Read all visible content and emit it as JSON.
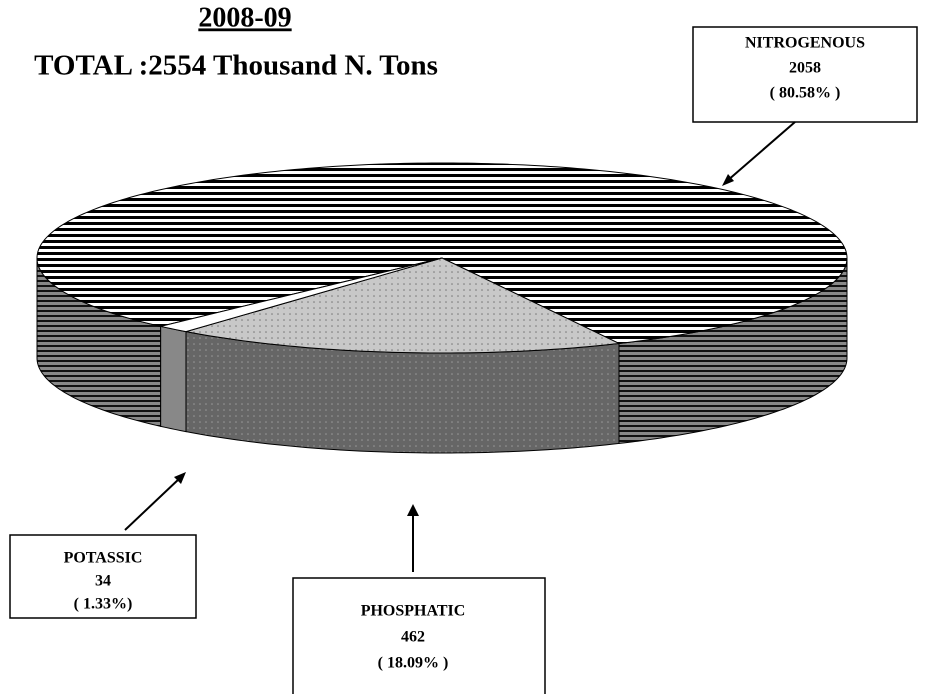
{
  "chart_data": {
    "type": "pie",
    "title": "2008-09",
    "subtitle": "TOTAL :2554 Thousand N. Tons",
    "categories": [
      "NITROGENOUS",
      "PHOSPHATIC",
      "POTASSIC"
    ],
    "values": [
      2058,
      462,
      34
    ],
    "value_labels": [
      "( 80.58% )",
      "( 18.09% )",
      "( 1.33%)"
    ]
  }
}
